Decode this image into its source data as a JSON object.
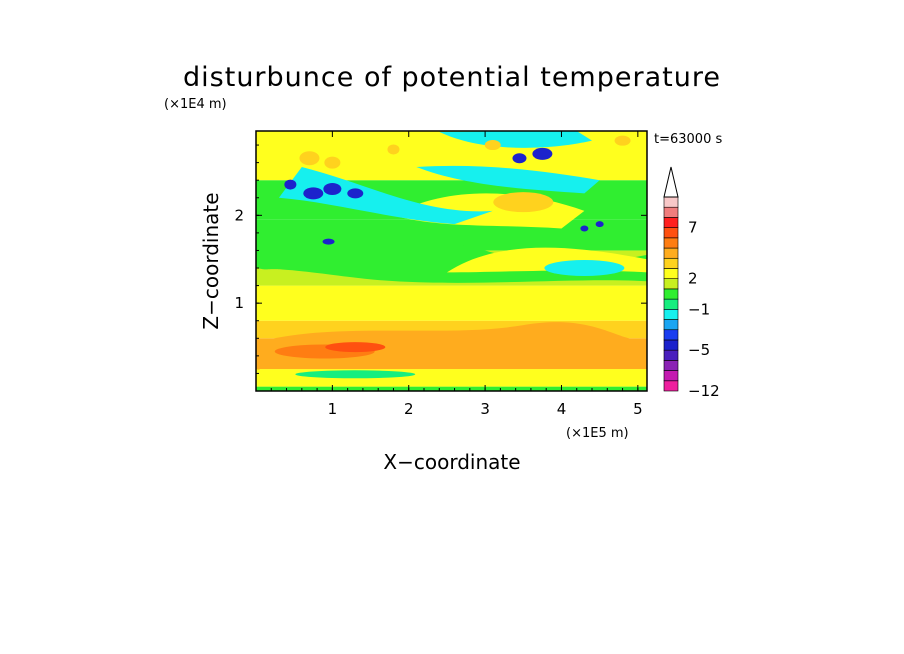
{
  "chart_data": {
    "type": "heatmap",
    "title": "disturbunce of potential temperature",
    "time_label": "t=63000 s",
    "xlabel": "X−coordinate",
    "ylabel": "Z−coordinate",
    "x_multiplier": "(×1E5 m)",
    "y_multiplier": "(×1E4 m)",
    "xlim": [
      0,
      5.12
    ],
    "ylim": [
      0,
      2.96
    ],
    "x_ticks": [
      {
        "value": 1,
        "label": "1"
      },
      {
        "value": 2,
        "label": "2"
      },
      {
        "value": 3,
        "label": "3"
      },
      {
        "value": 4,
        "label": "4"
      },
      {
        "value": 5,
        "label": "5"
      }
    ],
    "y_ticks": [
      {
        "value": 1,
        "label": "1"
      },
      {
        "value": 2,
        "label": "2"
      }
    ],
    "colorbar": {
      "levels": [
        -12,
        -10,
        -8,
        -6,
        -5,
        -4,
        -3,
        -2,
        -1,
        0,
        1,
        2,
        3,
        4,
        5,
        6,
        7,
        8,
        9
      ],
      "colors": [
        "#ee1f9e",
        "#c41ab0",
        "#8b22b4",
        "#4a1fbd",
        "#1c22cc",
        "#1a3df0",
        "#1aa5f2",
        "#16f0ee",
        "#16ee7f",
        "#30ee30",
        "#c8f020",
        "#ffff1e",
        "#ffd21e",
        "#ffac1e",
        "#ff7d12",
        "#ff5010",
        "#ff2020",
        "#f07d7d",
        "#f8c8c8"
      ],
      "extend_top": true,
      "labels": [
        {
          "value": 7,
          "label": "7"
        },
        {
          "value": 2,
          "label": "2"
        },
        {
          "value": -1,
          "label": "−1"
        },
        {
          "value": -5,
          "label": "−5"
        },
        {
          "value": -12,
          "label": "−12"
        }
      ]
    },
    "field": {
      "description_levels": "level index into colorbar.colors; rows from bottom (z low) to top",
      "regions": [
        {
          "z": [
            0.0,
            0.05
          ],
          "level": 9
        },
        {
          "z": [
            0.05,
            0.25
          ],
          "level": 11
        },
        {
          "z": [
            0.25,
            0.6
          ],
          "level": 13
        },
        {
          "z": [
            0.6,
            0.8
          ],
          "level": 12
        },
        {
          "z": [
            0.8,
            1.2
          ],
          "level": 11
        },
        {
          "z": [
            1.2,
            1.6
          ],
          "level": 10
        },
        {
          "z": [
            1.6,
            1.95
          ],
          "level": 9
        },
        {
          "z": [
            1.95,
            2.4
          ],
          "level": 9
        },
        {
          "z": [
            2.4,
            2.96
          ],
          "level": 11
        }
      ]
    }
  }
}
